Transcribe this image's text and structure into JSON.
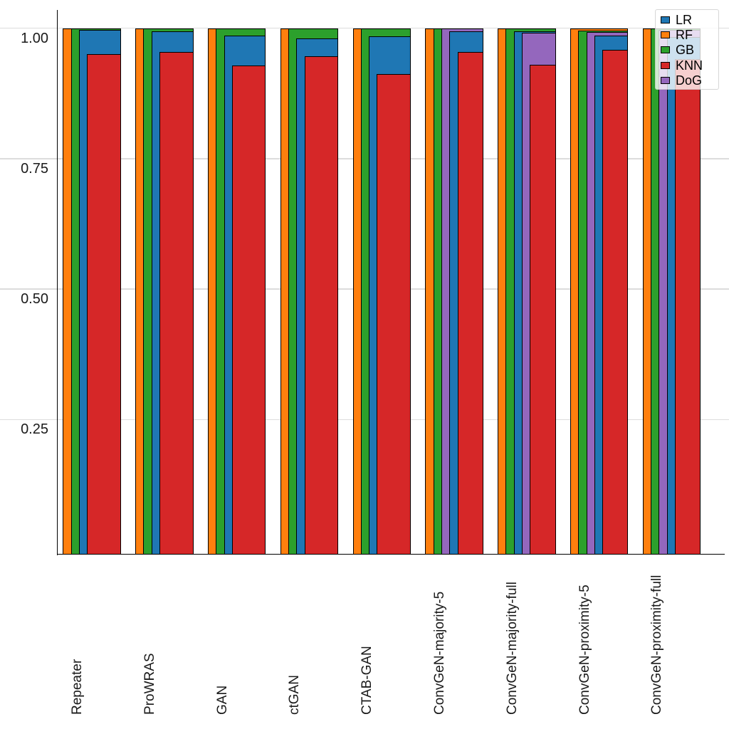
{
  "chart_data": {
    "type": "bar",
    "variant": "overlapping-nested-bars",
    "title": "",
    "xlabel": "",
    "ylabel": "",
    "categories": [
      "Repeater",
      "ProWRAS",
      "GAN",
      "ctGAN",
      "CTAB-GAN",
      "ConvGeN-majority-5",
      "ConvGeN-majority-full",
      "ConvGeN-proximity-5",
      "ConvGeN-proximity-full"
    ],
    "series": [
      {
        "name": "LR",
        "color": "#1f77b4",
        "values": [
          0.997,
          0.994,
          0.985,
          0.98,
          0.984,
          0.994,
          0.994,
          0.986,
          0.983
        ]
      },
      {
        "name": "RF",
        "color": "#ff7f0e",
        "values": [
          1.0,
          1.0,
          1.0,
          1.0,
          1.0,
          1.0,
          1.0,
          1.0,
          1.0
        ]
      },
      {
        "name": "GB",
        "color": "#2ca02c",
        "values": [
          1.0,
          1.0,
          1.0,
          1.0,
          1.0,
          1.0,
          1.0,
          0.995,
          1.0
        ]
      },
      {
        "name": "KNN",
        "color": "#d62728",
        "values": [
          0.95,
          0.954,
          0.929,
          0.946,
          0.912,
          0.954,
          0.93,
          0.958,
          0.941
        ]
      },
      {
        "name": "DoG",
        "color": "#9467bd",
        "values": [
          null,
          null,
          null,
          null,
          null,
          1.0,
          0.991,
          0.992,
          0.996
        ]
      }
    ],
    "draw_order": [
      [
        "RF",
        "GB",
        "LR",
        "KNN"
      ],
      [
        "RF",
        "GB",
        "LR",
        "KNN"
      ],
      [
        "RF",
        "GB",
        "LR",
        "KNN"
      ],
      [
        "RF",
        "GB",
        "LR",
        "KNN"
      ],
      [
        "RF",
        "GB",
        "LR",
        "KNN"
      ],
      [
        "RF",
        "GB",
        "DoG",
        "LR",
        "KNN"
      ],
      [
        "RF",
        "GB",
        "LR",
        "DoG",
        "KNN"
      ],
      [
        "RF",
        "GB",
        "DoG",
        "LR",
        "KNN"
      ],
      [
        "RF",
        "GB",
        "DoG",
        "LR",
        "KNN"
      ]
    ],
    "y_axis": {
      "ticks": [
        {
          "value": 1.0,
          "label": "1.00"
        },
        {
          "value": 0.75,
          "label": "0.75"
        },
        {
          "value": 0.5,
          "label": "0.50"
        },
        {
          "value": 0.25,
          "label": "0.25"
        }
      ],
      "range_bottom": 0.0,
      "range_top": 1.0
    },
    "grid": "horizontal-full-width",
    "legend": {
      "position": "upper-right",
      "entries": [
        "LR",
        "RF",
        "GB",
        "KNN",
        "DoG"
      ]
    }
  }
}
